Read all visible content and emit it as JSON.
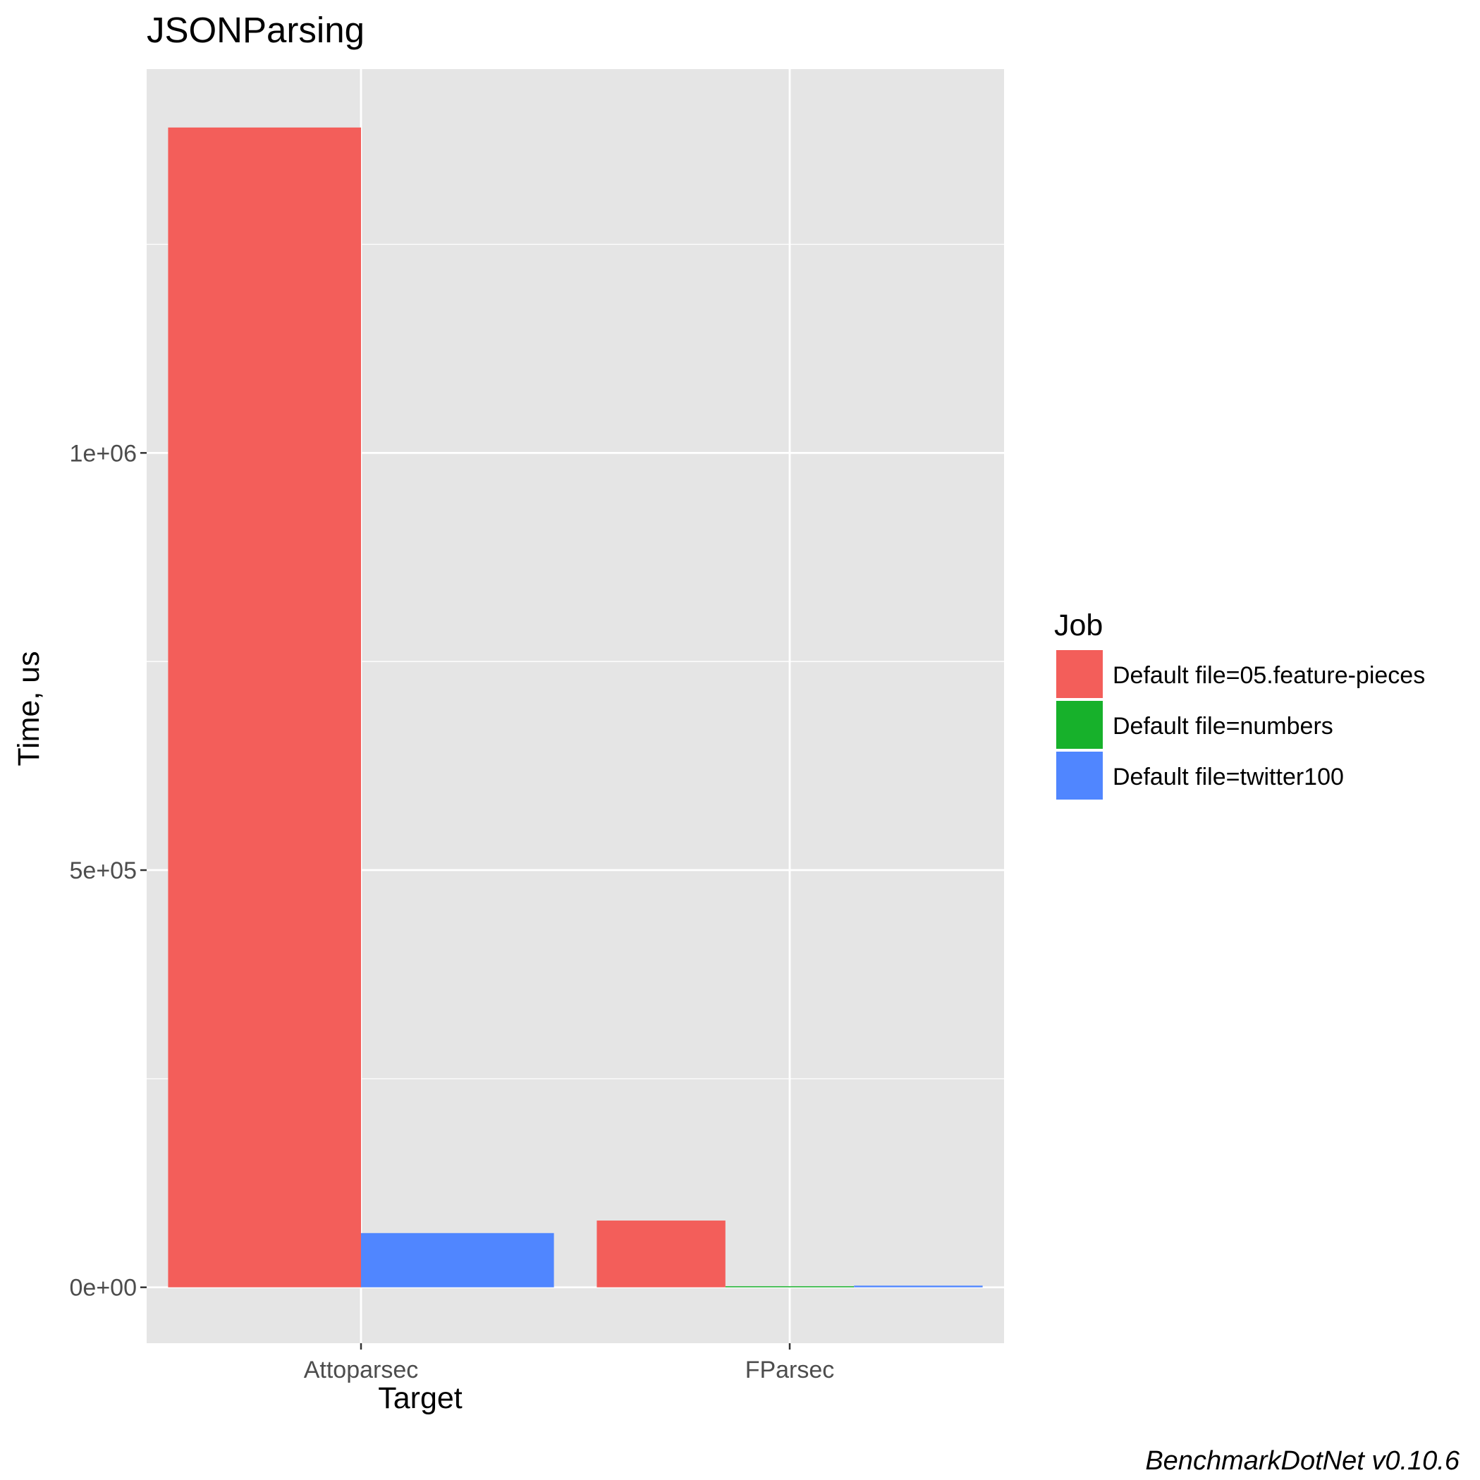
{
  "chart_data": {
    "type": "bar",
    "title": "JSONParsing",
    "xlabel": "Target",
    "ylabel": "Time, us",
    "caption": "BenchmarkDotNet v0.10.6",
    "categories": [
      "Attoparsec",
      "FParsec"
    ],
    "series": [
      {
        "name": "Default file=05.feature-pieces",
        "color": "#F35E5A",
        "values": [
          1390000,
          80000
        ]
      },
      {
        "name": "Default file=numbers",
        "color": "#17B12B",
        "values": [
          null,
          1200
        ]
      },
      {
        "name": "Default file=twitter100",
        "color": "#5086FF",
        "values": [
          65000,
          2000
        ]
      }
    ],
    "ylim": [
      -67000,
      1460000
    ],
    "yticks": [
      {
        "value": 0,
        "label": "0e+00"
      },
      {
        "value": 500000,
        "label": "5e+05"
      },
      {
        "value": 1000000,
        "label": "1e+06"
      }
    ],
    "y_minor_ticks": [
      250000,
      750000,
      1250000
    ],
    "grid": true,
    "legend": {
      "title": "Job",
      "position": "right"
    },
    "panel_background": "#E5E5E5",
    "grid_color": "#FFFFFF"
  }
}
